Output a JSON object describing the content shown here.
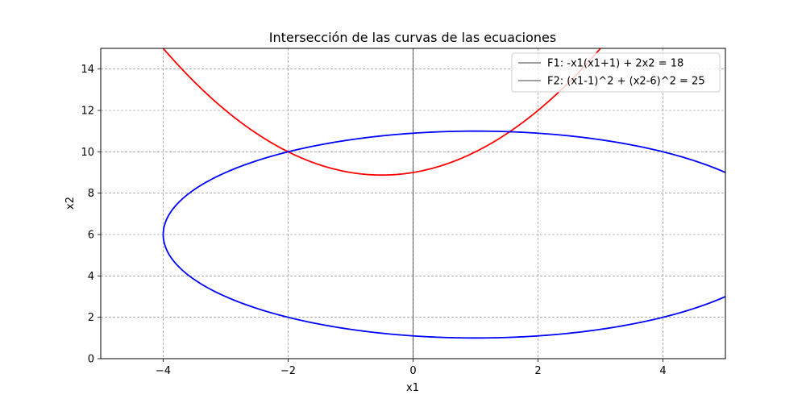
{
  "chart_data": {
    "type": "line",
    "title": "Intersección de las curvas de las ecuaciones",
    "xlabel": "x1",
    "ylabel": "x2",
    "xlim": [
      -5,
      5
    ],
    "ylim": [
      0,
      15
    ],
    "xticks": [
      -4,
      -2,
      0,
      2,
      4
    ],
    "yticks": [
      0,
      2,
      4,
      6,
      8,
      10,
      12,
      14
    ],
    "xtick_labels": [
      "−4",
      "−2",
      "0",
      "2",
      "4"
    ],
    "ytick_labels": [
      "0",
      "2",
      "4",
      "6",
      "8",
      "10",
      "12",
      "14"
    ],
    "grid": true,
    "legend_position": "top-right",
    "legend": [
      "F1: -x1(x1+1) + 2x2 = 18",
      "F2: (x1-1)^2 + (x2-6)^2 = 25"
    ],
    "series": [
      {
        "name": "F1: -x1(x1+1) + 2x2 = 18",
        "color": "#ff0000",
        "curve": "parabola",
        "x": [
          -4.6,
          -4.0,
          -3.5,
          -3.0,
          -2.5,
          -2.0,
          -1.5,
          -1.0,
          -0.5,
          0.0,
          0.5,
          1.0,
          1.5,
          2.0,
          2.5,
          3.0
        ],
        "y": [
          15.0,
          15.0,
          13.38,
          12.0,
          10.88,
          10.0,
          9.38,
          9.0,
          8.88,
          9.0,
          9.38,
          10.0,
          10.88,
          12.0,
          13.38,
          15.0
        ]
      },
      {
        "name": "F2: (x1-1)^2 + (x2-6)^2 = 25",
        "color": "#0000ff",
        "curve": "circle",
        "center": [
          1,
          6
        ],
        "radius": 5
      }
    ],
    "reference_lines": {
      "x0": 0,
      "color": "#000000"
    }
  }
}
